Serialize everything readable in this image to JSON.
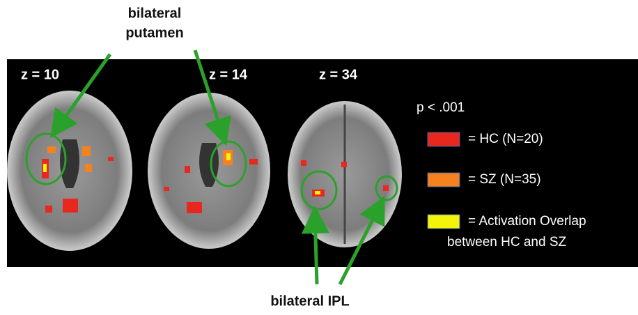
{
  "annotations": {
    "top": [
      "bilateral",
      "putamen"
    ],
    "bottom": "bilateral IPL"
  },
  "slices": [
    {
      "label": "z = 10"
    },
    {
      "label": "z = 14"
    },
    {
      "label": "z = 34"
    }
  ],
  "threshold": "p < .001",
  "legend": [
    {
      "color": "#e8281e",
      "label": [
        "= HC (N=20)"
      ]
    },
    {
      "color": "#f5821f",
      "label": [
        "=  SZ (N=35)"
      ]
    },
    {
      "color": "#f4f40a",
      "label": [
        "= Activation Overlap",
        "between HC and SZ"
      ]
    }
  ]
}
